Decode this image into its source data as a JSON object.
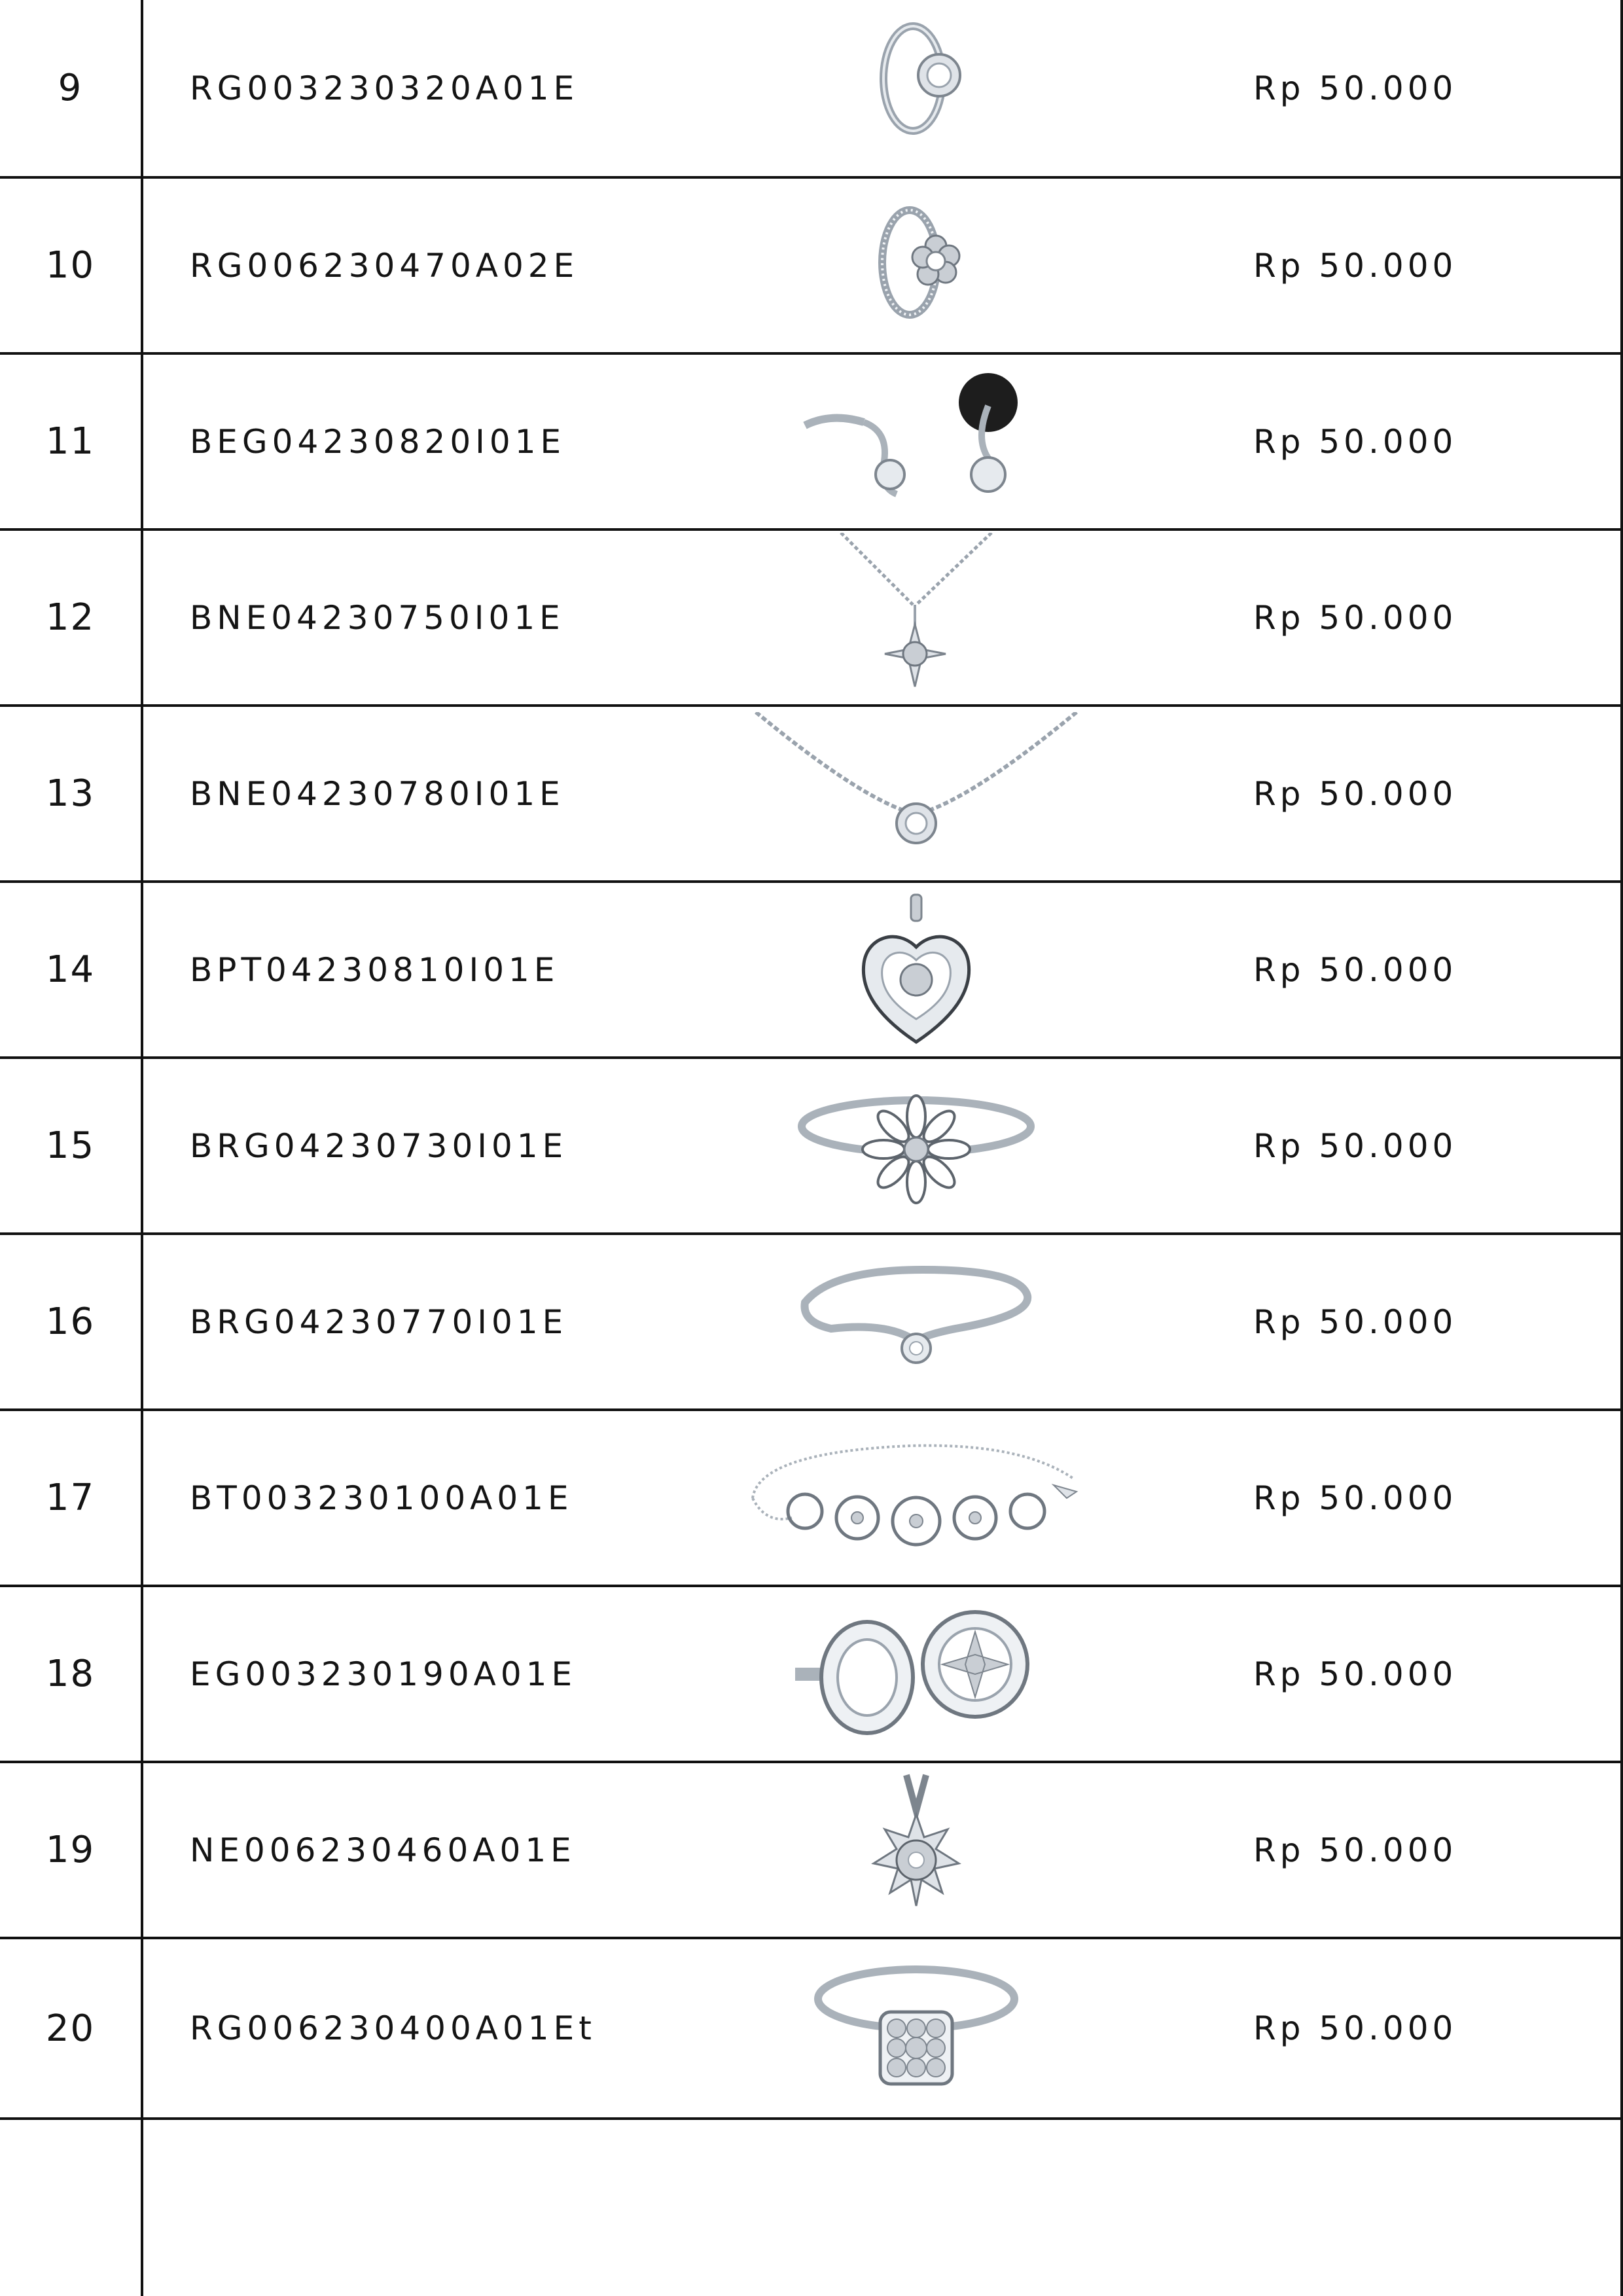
{
  "rows": [
    {
      "no": "9",
      "code": "RG003230320A01E",
      "price": "Rp 50.000",
      "image": "ring-halo-icon"
    },
    {
      "no": "10",
      "code": "RG006230470A02E",
      "price": "Rp 50.000",
      "image": "ring-flower-icon"
    },
    {
      "no": "11",
      "code": "BEG04230820I01E",
      "price": "Rp 50.000",
      "image": "earrings-drop-icon"
    },
    {
      "no": "12",
      "code": "BNE04230750I01E",
      "price": "Rp 50.000",
      "image": "necklace-star-icon"
    },
    {
      "no": "13",
      "code": "BNE04230780I01E",
      "price": "Rp 50.000",
      "image": "necklace-round-icon"
    },
    {
      "no": "14",
      "code": "BPT04230810I01E",
      "price": "Rp 50.000",
      "image": "pendant-heart-icon"
    },
    {
      "no": "15",
      "code": "BRG04230730I01E",
      "price": "Rp 50.000",
      "image": "ring-daisy-icon"
    },
    {
      "no": "16",
      "code": "BRG04230770I01E",
      "price": "Rp 50.000",
      "image": "ring-solitaire-icon"
    },
    {
      "no": "17",
      "code": "BT003230100A01E",
      "price": "Rp 50.000",
      "image": "bracelet-circles-icon"
    },
    {
      "no": "18",
      "code": "EG003230190A01E",
      "price": "Rp 50.000",
      "image": "earrings-round-stud-icon"
    },
    {
      "no": "19",
      "code": "NE006230460A01E",
      "price": "Rp 50.000",
      "image": "pendant-sunburst-icon"
    },
    {
      "no": "20",
      "code": "RG006230400A01Et",
      "price": "Rp 50.000",
      "image": "ring-square-cluster-icon"
    }
  ]
}
